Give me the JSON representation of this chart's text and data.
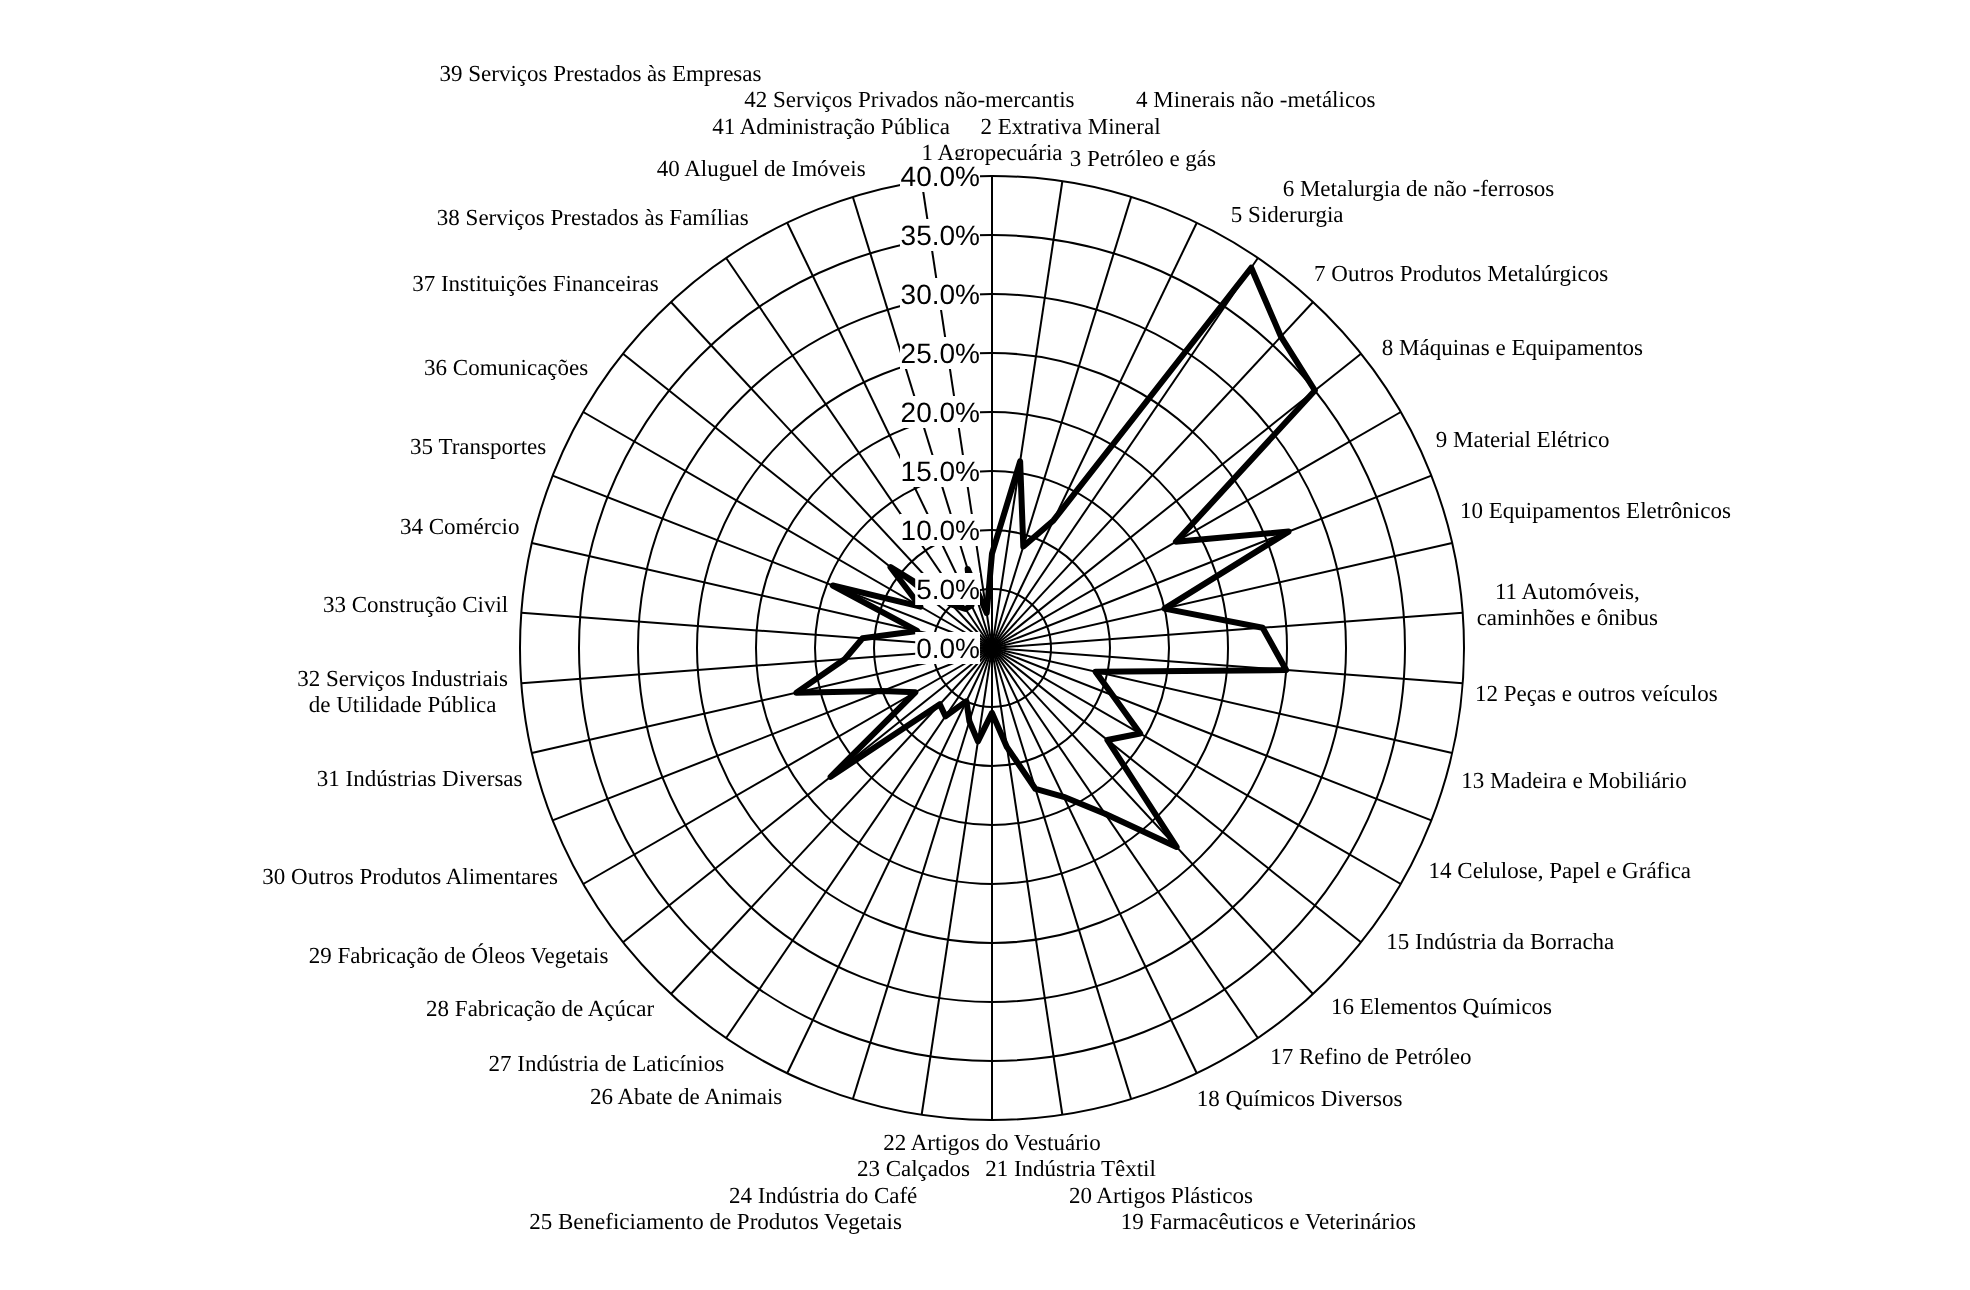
{
  "chart_data": {
    "type": "radar",
    "categories": [
      "1 Agropecuária",
      "2 Extrativa Mineral",
      "3 Petróleo e gás",
      "4 Minerais não -metálicos",
      "5 Siderurgia",
      "6 Metalurgia de não -ferrosos",
      "7 Outros Produtos Metalúrgicos",
      "8 Máquinas e Equipamentos",
      "9 Material Elétrico",
      "10 Equipamentos Eletrônicos",
      "11 Automóveis,\ncaminhões e ônibus",
      "12 Peças e outros veículos",
      "13 Madeira e Mobiliário",
      "14 Celulose, Papel e Gráfica",
      "15 Indústria da Borracha",
      "16 Elementos Químicos",
      "17 Refino de Petróleo",
      "18 Químicos Diversos",
      "19 Farmacêuticos e Veterinários",
      "20 Artigos Plásticos",
      "21 Indústria Têxtil",
      "22 Artigos do Vestuário",
      "23 Calçados",
      "24 Indústria do Café",
      "25 Beneficiamento de Produtos Vegetais",
      "26 Abate de Animais",
      "27 Indústria de Laticínios",
      "28 Fabricação de Açúcar",
      "29 Fabricação de Óleos Vegetais",
      "30 Outros Produtos Alimentares",
      "31 Indústrias Diversas",
      "32 Serviços Industriais\nde Utilidade Pública",
      "33 Construção Civil",
      "34 Comércio",
      "35 Transportes",
      "36 Comunicações",
      "37 Instituições Financeiras",
      "38 Serviços Prestados às Famílias",
      "39 Serviços Prestados às Empresas",
      "40 Aluguel de Imóveis",
      "41 Administração Pública",
      "42 Serviços Privados não-mercantis"
    ],
    "series": [
      {
        "color": "#000000",
        "values": [
          8,
          16,
          9,
          12,
          39,
          36,
          35,
          18,
          27,
          15,
          23,
          25,
          9,
          11,
          14.5,
          12.5,
          23,
          17,
          14,
          12.5,
          8.5,
          5.5,
          8,
          6.5,
          5,
          7,
          6.5,
          17.5,
          7.5,
          10,
          17,
          12.5,
          11,
          6.5,
          14.5,
          7,
          11,
          5,
          4,
          4,
          7,
          3
        ]
      }
    ],
    "ylim": [
      0,
      40
    ],
    "yticks": [
      {
        "value": 0,
        "label": "0.0%"
      },
      {
        "value": 5,
        "label": "5.0%"
      },
      {
        "value": 10,
        "label": "10.0%"
      },
      {
        "value": 15,
        "label": "15.0%"
      },
      {
        "value": 20,
        "label": "20.0%"
      },
      {
        "value": 25,
        "label": "25.0%"
      },
      {
        "value": 30,
        "label": "30.0%"
      },
      {
        "value": 35,
        "label": "35.0%"
      },
      {
        "value": 40,
        "label": "40.0%"
      }
    ],
    "grid": true,
    "marker": "none",
    "legend": false
  }
}
